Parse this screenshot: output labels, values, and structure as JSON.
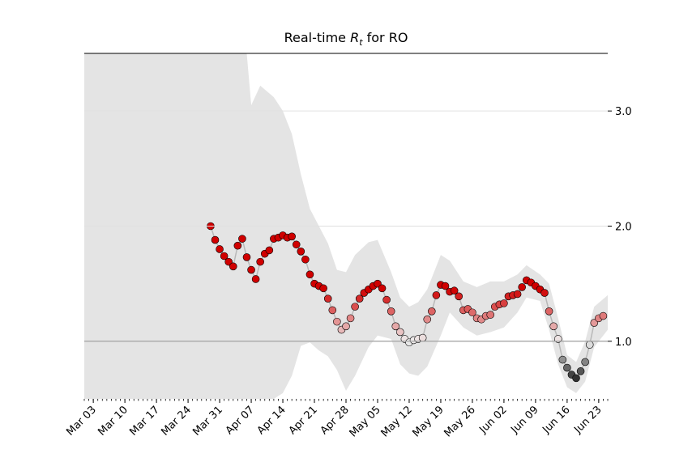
{
  "chart_data": {
    "type": "line",
    "title": {
      "prefix": "Real-time ",
      "symbol": "R",
      "subscript": "t",
      "suffix": " for RO"
    },
    "x": [
      "Mar 29",
      "Mar 30",
      "Mar 31",
      "Apr 01",
      "Apr 02",
      "Apr 03",
      "Apr 04",
      "Apr 05",
      "Apr 06",
      "Apr 07",
      "Apr 08",
      "Apr 09",
      "Apr 10",
      "Apr 11",
      "Apr 12",
      "Apr 13",
      "Apr 14",
      "Apr 15",
      "Apr 16",
      "Apr 17",
      "Apr 18",
      "Apr 19",
      "Apr 20",
      "Apr 21",
      "Apr 22",
      "Apr 23",
      "Apr 24",
      "Apr 25",
      "Apr 26",
      "Apr 27",
      "Apr 28",
      "Apr 29",
      "Apr 30",
      "May 01",
      "May 02",
      "May 03",
      "May 04",
      "May 05",
      "May 06",
      "May 07",
      "May 08",
      "May 09",
      "May 10",
      "May 11",
      "May 12",
      "May 13",
      "May 14",
      "May 15",
      "May 16",
      "May 17",
      "May 18",
      "May 19",
      "May 20",
      "May 21",
      "May 22",
      "May 23",
      "May 24",
      "May 25",
      "May 26",
      "May 27",
      "May 28",
      "May 29",
      "May 30",
      "May 31",
      "Jun 01",
      "Jun 02",
      "Jun 03",
      "Jun 04",
      "Jun 05",
      "Jun 06",
      "Jun 07",
      "Jun 08",
      "Jun 09",
      "Jun 10",
      "Jun 11",
      "Jun 12",
      "Jun 13",
      "Jun 14",
      "Jun 15",
      "Jun 16",
      "Jun 17",
      "Jun 18",
      "Jun 19",
      "Jun 20",
      "Jun 21",
      "Jun 22",
      "Jun 23",
      "Jun 24"
    ],
    "values": [
      2.0,
      1.88,
      1.8,
      1.74,
      1.69,
      1.65,
      1.83,
      1.89,
      1.73,
      1.62,
      1.54,
      1.69,
      1.76,
      1.79,
      1.89,
      1.9,
      1.92,
      1.9,
      1.91,
      1.84,
      1.78,
      1.71,
      1.58,
      1.5,
      1.48,
      1.46,
      1.37,
      1.27,
      1.17,
      1.1,
      1.13,
      1.2,
      1.3,
      1.37,
      1.42,
      1.45,
      1.48,
      1.5,
      1.46,
      1.36,
      1.26,
      1.13,
      1.08,
      1.02,
      0.99,
      1.01,
      1.02,
      1.03,
      1.19,
      1.26,
      1.4,
      1.49,
      1.48,
      1.43,
      1.44,
      1.39,
      1.27,
      1.28,
      1.25,
      1.2,
      1.19,
      1.22,
      1.23,
      1.3,
      1.32,
      1.33,
      1.39,
      1.4,
      1.41,
      1.47,
      1.53,
      1.51,
      1.48,
      1.45,
      1.42,
      1.26,
      1.13,
      1.02,
      0.84,
      0.77,
      0.71,
      0.68,
      0.74,
      0.82,
      0.97,
      1.16,
      1.2,
      1.22
    ],
    "band": {
      "x": [
        "Mar 01",
        "Apr 06",
        "Apr 07",
        "Apr 09",
        "Apr 12",
        "Apr 14",
        "Apr 16",
        "Apr 18",
        "Apr 20",
        "Apr 22",
        "Apr 24",
        "Apr 26",
        "Apr 28",
        "Apr 30",
        "May 03",
        "May 05",
        "May 08",
        "May 10",
        "May 12",
        "May 14",
        "May 16",
        "May 19",
        "May 21",
        "May 24",
        "May 27",
        "May 30",
        "Jun 02",
        "Jun 05",
        "Jun 07",
        "Jun 10",
        "Jun 12",
        "Jun 14",
        "Jun 16",
        "Jun 18",
        "Jun 20",
        "Jun 22",
        "Jun 25"
      ],
      "upper": [
        3.5,
        3.5,
        3.05,
        3.22,
        3.12,
        3.0,
        2.8,
        2.45,
        2.15,
        2.0,
        1.85,
        1.62,
        1.6,
        1.75,
        1.86,
        1.88,
        1.6,
        1.38,
        1.3,
        1.34,
        1.45,
        1.75,
        1.7,
        1.52,
        1.47,
        1.52,
        1.52,
        1.58,
        1.66,
        1.58,
        1.5,
        1.2,
        0.88,
        0.82,
        1.0,
        1.3,
        1.4
      ],
      "lower": [
        0.5,
        0.5,
        0.5,
        0.5,
        0.5,
        0.55,
        0.7,
        0.96,
        0.99,
        0.92,
        0.87,
        0.75,
        0.57,
        0.7,
        0.95,
        1.05,
        1.02,
        0.8,
        0.72,
        0.7,
        0.78,
        1.05,
        1.25,
        1.12,
        1.05,
        1.08,
        1.12,
        1.25,
        1.38,
        1.35,
        1.1,
        0.8,
        0.6,
        0.55,
        0.65,
        0.95,
        1.1
      ],
      "color": "#e4e4e4"
    },
    "xlim": [
      "Mar 01",
      "Jun 25"
    ],
    "xticks": [
      "Mar 03",
      "Mar 10",
      "Mar 17",
      "Mar 24",
      "Mar 31",
      "Apr 07",
      "Apr 14",
      "Apr 21",
      "Apr 28",
      "May 05",
      "May 12",
      "May 19",
      "May 26",
      "Jun 02",
      "Jun 09",
      "Jun 16",
      "Jun 23"
    ],
    "ylim": [
      0.5,
      3.5
    ],
    "yticks": [
      {
        "value": 1,
        "label": "1.0"
      },
      {
        "value": 2,
        "label": "2.0"
      },
      {
        "value": 3,
        "label": "3.0"
      }
    ],
    "reference_line": 1,
    "grid": true
  }
}
